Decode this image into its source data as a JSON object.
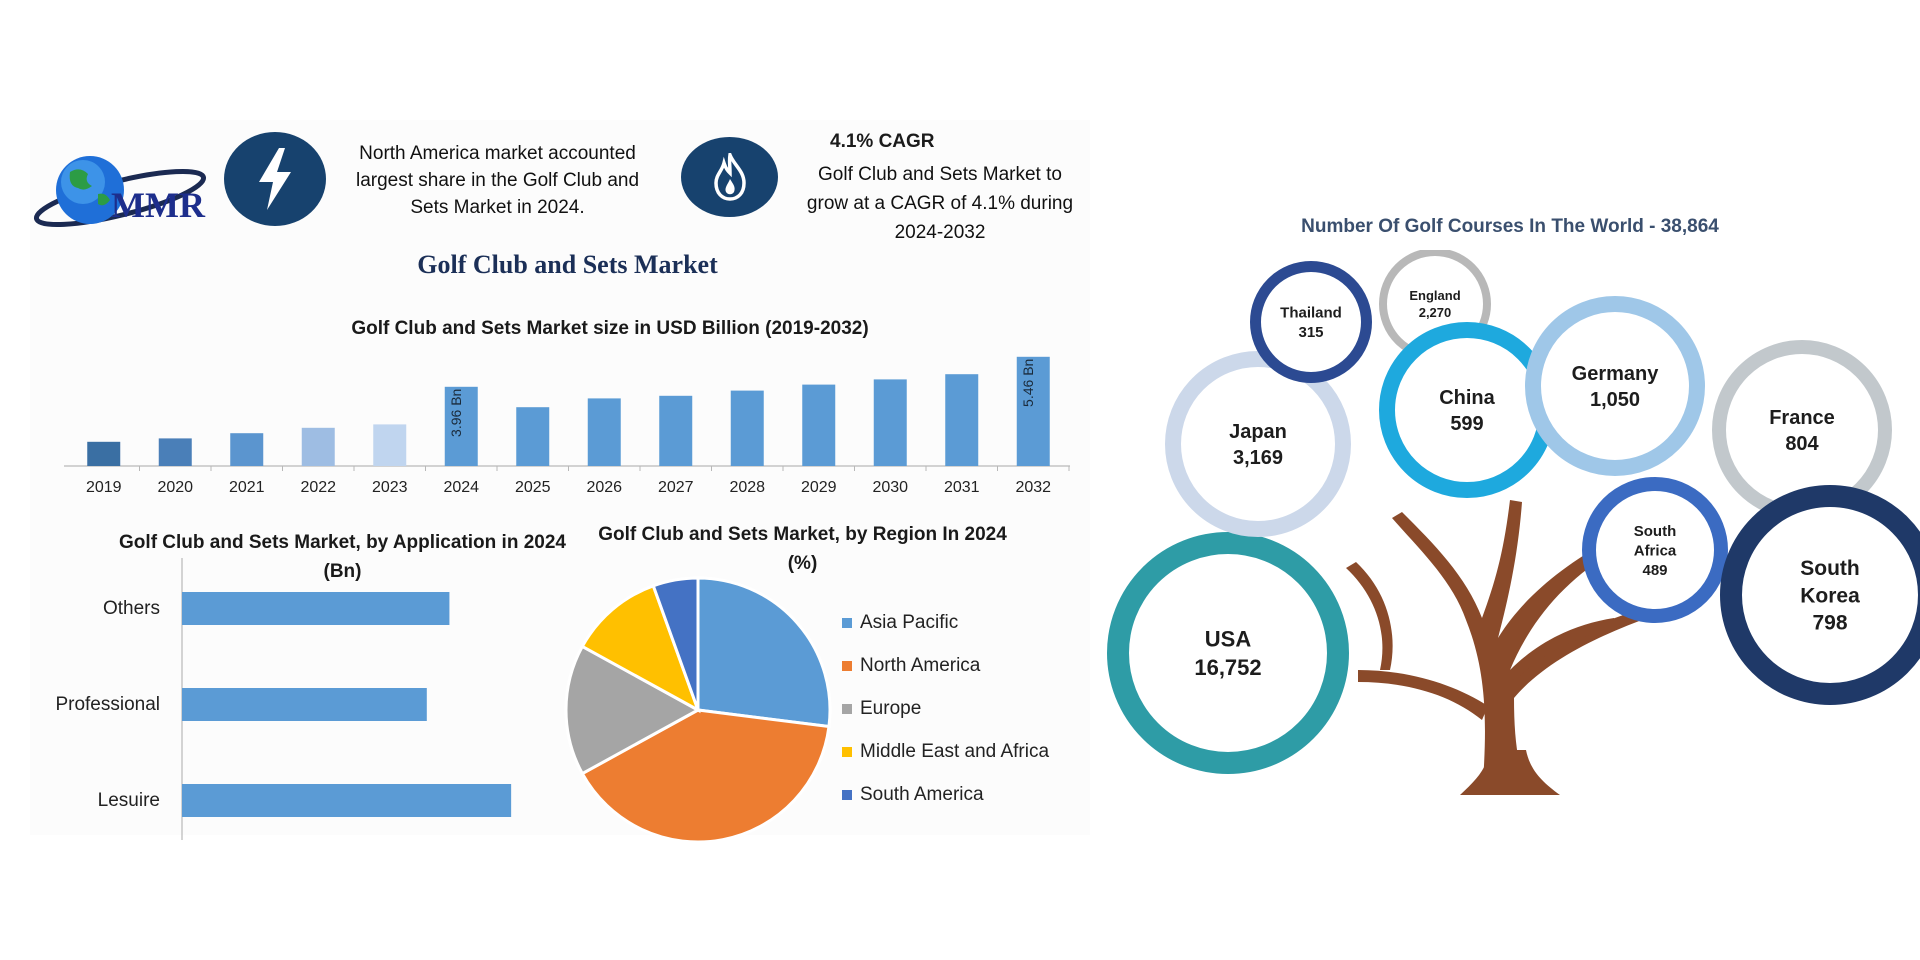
{
  "header": {
    "logo_text": "MMR",
    "insight_text": "North America market accounted largest share in the Golf Club and Sets Market in 2024.",
    "cagr_heading": "4.1% CAGR",
    "cagr_text": "Golf Club and Sets Market to grow at a CAGR of 4.1% during 2024-2032",
    "main_title": "Golf Club and Sets Market",
    "icons": [
      "lightning-icon",
      "flame-icon",
      "globe-logo-icon"
    ]
  },
  "chart_data": [
    {
      "type": "bar",
      "title": "Golf Club and Sets Market size in USD Billion (2019-2032)",
      "categories": [
        "2019",
        "2020",
        "2021",
        "2022",
        "2023",
        "2024",
        "2025",
        "2026",
        "2027",
        "2028",
        "2029",
        "2030",
        "2031",
        "2032"
      ],
      "values": [
        1.21,
        1.38,
        1.64,
        1.91,
        2.08,
        3.96,
        2.94,
        3.38,
        3.51,
        3.77,
        4.07,
        4.33,
        4.59,
        5.46
      ],
      "colors": [
        "#3a6fa3",
        "#4a7fb8",
        "#5b95cf",
        "#9ebde3",
        "#c0d5ef",
        "#5b9bd5",
        "#5b9bd5",
        "#5b9bd5",
        "#5b9bd5",
        "#5b9bd5",
        "#5b9bd5",
        "#5b9bd5",
        "#5b9bd5",
        "#5b9bd5"
      ],
      "data_labels": {
        "2024": "3.96 Bn",
        "2032": "5.46 Bn"
      },
      "ylim": [
        0,
        5.9
      ],
      "grid": false
    },
    {
      "type": "bar",
      "orientation": "horizontal",
      "title": "Golf Club and Sets Market, by Application in 2024 (Bn)",
      "categories": [
        "Others",
        "Professional",
        "Lesuire"
      ],
      "values": [
        1.3,
        1.19,
        1.6
      ],
      "xlim": [
        0,
        1.75
      ],
      "color": "#5b9bd5",
      "grid": false
    },
    {
      "type": "pie",
      "title": "Golf Club and Sets Market, by Region In 2024 (%)",
      "categories": [
        "Asia Pacific",
        "North America",
        "Europe",
        "Middle East and Africa",
        "South America"
      ],
      "values": [
        27,
        40,
        16,
        11.5,
        5.5
      ],
      "colors": [
        "#5b9bd5",
        "#ed7d31",
        "#a5a5a5",
        "#ffc000",
        "#4472c4"
      ],
      "legend_position": "right"
    },
    {
      "type": "bubble",
      "title": "Number Of Golf Courses In The World - 38,864",
      "categories": [
        "USA",
        "Japan",
        "Thailand",
        "England",
        "China",
        "Germany",
        "France",
        "South Africa",
        "South Korea"
      ],
      "values": [
        16752,
        3169,
        315,
        2270,
        599,
        1050,
        804,
        489,
        798
      ],
      "display_values": [
        "16,752",
        "3,169",
        "315",
        "2,270",
        "599",
        "1,050",
        "804",
        "489",
        "798"
      ],
      "ring_colors": [
        "#2e9ca6",
        "#ccd8ea",
        "#2c4a92",
        "#b8b8b8",
        "#1ea9de",
        "#9fc7e8",
        "#c2c8cc",
        "#3b6bc2",
        "#1f3968"
      ],
      "trunk_color": "#8a4a2a"
    }
  ]
}
